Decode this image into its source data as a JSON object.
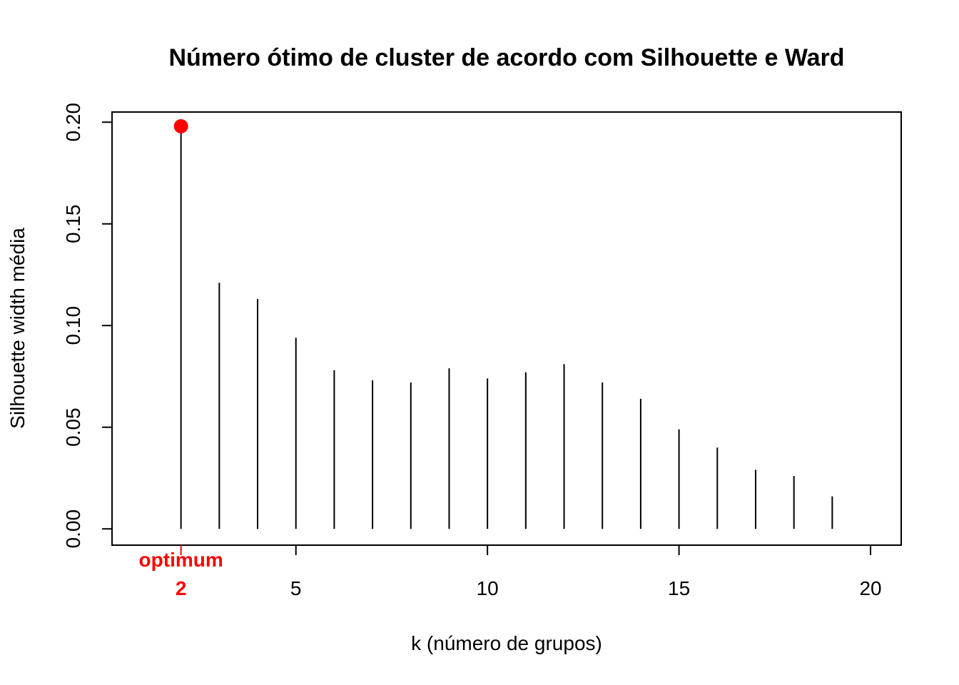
{
  "chart_data": {
    "type": "bar",
    "style": "vertical-lines",
    "title": "Número ótimo de cluster de acordo com Silhouette e Ward",
    "xlabel": "k (número de grupos)",
    "ylabel": "Silhouette width média",
    "x": [
      1,
      2,
      3,
      4,
      5,
      6,
      7,
      8,
      9,
      10,
      11,
      12,
      13,
      14,
      15,
      16,
      17,
      18,
      19,
      20
    ],
    "values": [
      0.0,
      0.198,
      0.121,
      0.113,
      0.094,
      0.078,
      0.073,
      0.072,
      0.079,
      0.074,
      0.077,
      0.081,
      0.072,
      0.064,
      0.049,
      0.04,
      0.029,
      0.026,
      0.016,
      0.0
    ],
    "xlim": [
      0.2,
      20.8
    ],
    "ylim": [
      -0.008,
      0.205
    ],
    "x_ticks": [
      5,
      10,
      15,
      20
    ],
    "x_tick_labels": [
      "5",
      "10",
      "15",
      "20"
    ],
    "y_ticks": [
      0.0,
      0.05,
      0.1,
      0.15,
      0.2
    ],
    "y_tick_labels": [
      "0.00",
      "0.05",
      "0.10",
      "0.15",
      "0.20"
    ],
    "grid": false,
    "optimum": {
      "k": 2,
      "value": 0.198,
      "label": "optimum",
      "k_label": "2",
      "color": "#ff0000"
    },
    "line_color": "#000000"
  }
}
